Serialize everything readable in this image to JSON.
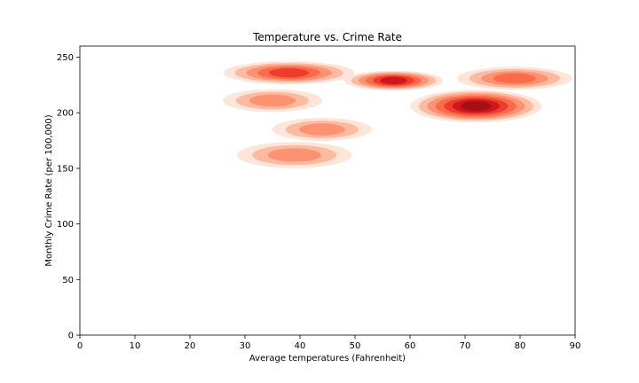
{
  "chart_data": {
    "type": "kde",
    "title": "Temperature vs. Crime Rate",
    "xlabel": "Average temperatures (Fahrenheit)",
    "ylabel": "Monthly Crime Rate (per 100,000)",
    "xlim": [
      0,
      90
    ],
    "ylim": [
      0,
      260
    ],
    "xticks": [
      0,
      10,
      20,
      30,
      40,
      50,
      60,
      70,
      80,
      90
    ],
    "yticks": [
      0,
      50,
      100,
      150,
      200,
      250
    ],
    "grid": false,
    "colormap": "Reds",
    "colors": {
      "level_1": "#fee5d9",
      "level_2": "#fcbba1",
      "level_3": "#fc9272",
      "level_4": "#fb6a4a",
      "level_5": "#ef3b2c",
      "level_6": "#cb181d",
      "level_7": "#a50f15"
    },
    "density_peaks": [
      {
        "x": 38,
        "y": 236,
        "sx": 8,
        "sy": 6,
        "level": 5
      },
      {
        "x": 35,
        "y": 211,
        "sx": 6,
        "sy": 6,
        "level": 3
      },
      {
        "x": 44,
        "y": 185,
        "sx": 6,
        "sy": 6,
        "level": 3
      },
      {
        "x": 39,
        "y": 162,
        "sx": 7,
        "sy": 7,
        "level": 3
      },
      {
        "x": 57,
        "y": 229,
        "sx": 6,
        "sy": 5,
        "level": 6
      },
      {
        "x": 72,
        "y": 206,
        "sx": 8,
        "sy": 9,
        "level": 7
      },
      {
        "x": 79,
        "y": 231,
        "sx": 7,
        "sy": 6,
        "level": 4
      }
    ]
  }
}
